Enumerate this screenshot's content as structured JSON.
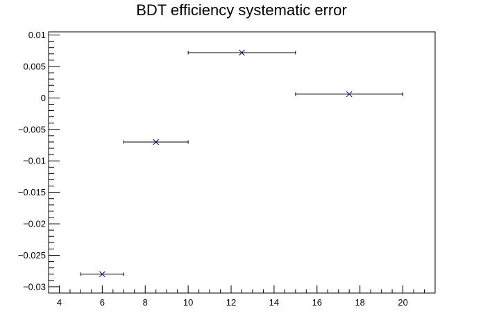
{
  "chart_data": {
    "type": "scatter",
    "title": "BDT efficiency systematic error",
    "xlabel": "",
    "ylabel": "",
    "xlim": [
      3.5,
      21.5
    ],
    "ylim": [
      -0.031,
      0.0105
    ],
    "grid": false,
    "legend": "none",
    "x_ticks": [
      4,
      6,
      8,
      10,
      12,
      14,
      16,
      18,
      20
    ],
    "x_tick_labels": [
      "4",
      "6",
      "8",
      "10",
      "12",
      "14",
      "16",
      "18",
      "20"
    ],
    "y_ticks": [
      -0.03,
      -0.025,
      -0.02,
      -0.015,
      -0.01,
      -0.005,
      0,
      0.005,
      0.01
    ],
    "y_tick_labels": [
      "−0.03",
      "−0.025",
      "−0.02",
      "−0.015",
      "−0.01",
      "−0.005",
      "0",
      "0.005",
      "0.01"
    ],
    "series": [
      {
        "marker": "x",
        "color": "#00007f",
        "errorbar_color": "#000000",
        "points": [
          {
            "x": 6,
            "y": -0.028,
            "xerr_low": 1,
            "xerr_high": 1
          },
          {
            "x": 8.5,
            "y": -0.007,
            "xerr_low": 1.5,
            "xerr_high": 1.5
          },
          {
            "x": 12.5,
            "y": 0.0072,
            "xerr_low": 2.5,
            "xerr_high": 2.5
          },
          {
            "x": 17.5,
            "y": 0.0006,
            "xerr_low": 2.5,
            "xerr_high": 2.5
          }
        ]
      }
    ]
  }
}
